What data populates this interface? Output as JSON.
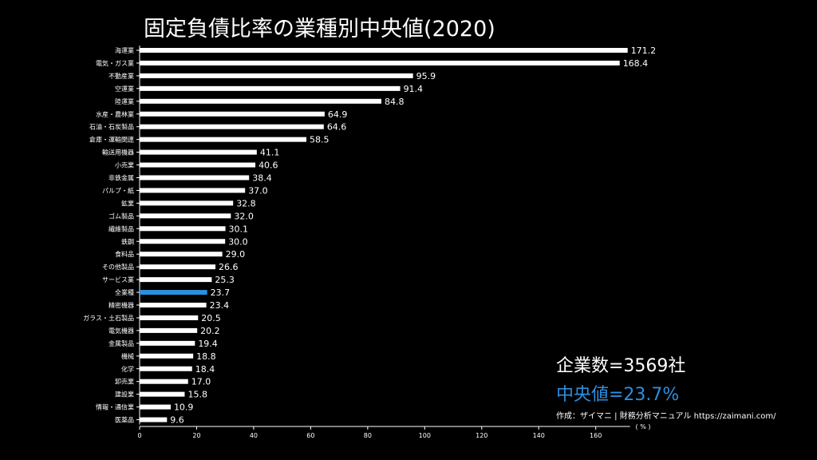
{
  "title": "固定負債比率の業種別中央値(2020)",
  "summary": {
    "company_count": "企業数=3569社",
    "median": "中央値=23.7%",
    "source": "作成：ザイマニ | 財務分析マニュアル https://zaimani.com/"
  },
  "colors": {
    "bar": "#ffffff",
    "highlight": "#2a8fe0",
    "background": "#000000"
  },
  "chart_data": {
    "type": "bar",
    "orientation": "horizontal",
    "title": "固定負債比率の業種別中央値(2020)",
    "xlabel": "( % )",
    "xlim": [
      0,
      172
    ],
    "xticks": [
      0,
      20,
      40,
      60,
      80,
      100,
      120,
      140,
      160
    ],
    "highlight_category": "全業種",
    "categories": [
      "海運業",
      "電気・ガス業",
      "不動産業",
      "空運業",
      "陸運業",
      "水産・農林業",
      "石油・石炭製品",
      "倉庫・運輸関連",
      "輸送用機器",
      "小売業",
      "非鉄金属",
      "パルプ・紙",
      "鉱業",
      "ゴム製品",
      "繊維製品",
      "鉄鋼",
      "食料品",
      "その他製品",
      "サービス業",
      "全業種",
      "精密機器",
      "ガラス・土石製品",
      "電気機器",
      "金属製品",
      "機械",
      "化学",
      "卸売業",
      "建設業",
      "情報・通信業",
      "医薬品"
    ],
    "values": [
      171.2,
      168.4,
      95.9,
      91.4,
      84.8,
      64.9,
      64.6,
      58.5,
      41.1,
      40.6,
      38.4,
      37.0,
      32.8,
      32.0,
      30.1,
      30.0,
      29.0,
      26.6,
      25.3,
      23.7,
      23.4,
      20.5,
      20.2,
      19.4,
      18.8,
      18.4,
      17.0,
      15.8,
      10.9,
      9.6
    ],
    "value_labels": [
      "171.2",
      "168.4",
      "95.9",
      "91.4",
      "84.8",
      "64.9",
      "64.6",
      "58.5",
      "41.1",
      "40.6",
      "38.4",
      "37.0",
      "32.8",
      "32.0",
      "30.1",
      "30.0",
      "29.0",
      "26.6",
      "25.3",
      "23.7",
      "23.4",
      "20.5",
      "20.2",
      "19.4",
      "18.8",
      "18.4",
      "17.0",
      "15.8",
      "10.9",
      "9.6"
    ],
    "grid": false
  }
}
